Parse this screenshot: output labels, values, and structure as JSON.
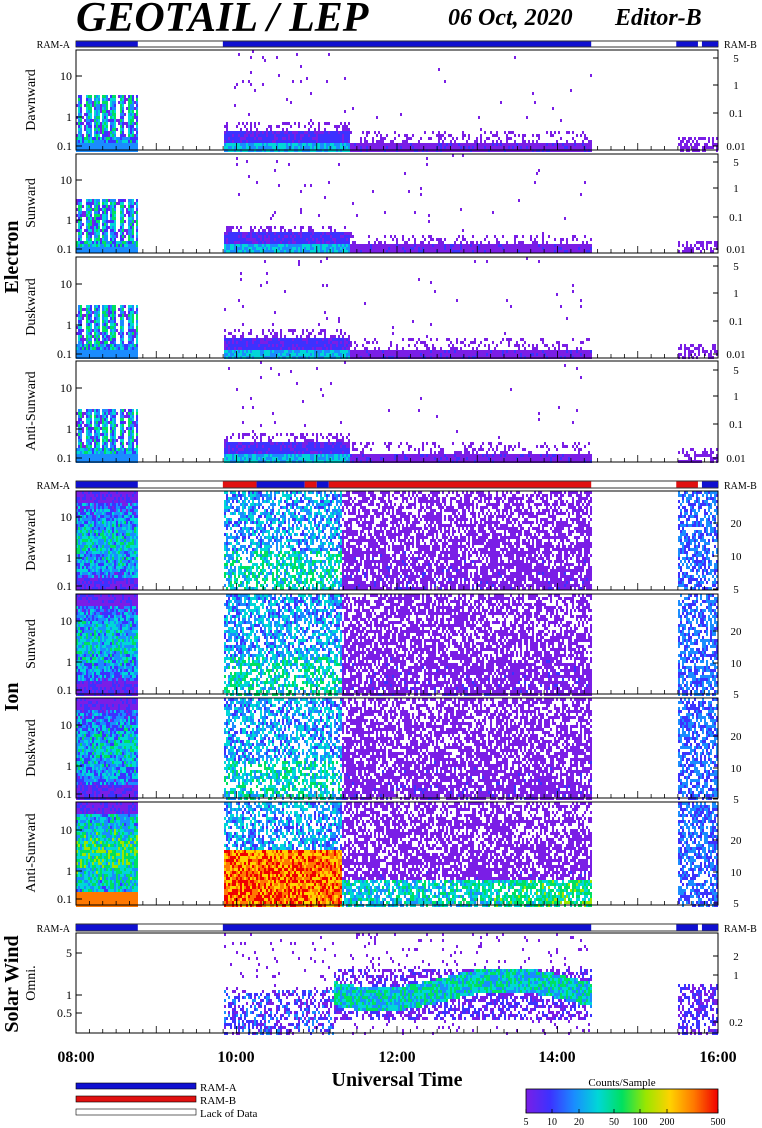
{
  "header": {
    "title": "GEOTAIL / LEP",
    "date": "06 Oct, 2020",
    "editor": "Editor-B"
  },
  "ram_labels": {
    "left": "RAM-A",
    "right": "RAM-B"
  },
  "group_labels": {
    "electron": "Electron",
    "ion": "Ion",
    "solar_wind": "Solar Wind"
  },
  "x_axis": {
    "label": "Universal Time",
    "ticks": [
      "08:00",
      "10:00",
      "12:00",
      "14:00",
      "16:00"
    ]
  },
  "legend": {
    "ram_a": "RAM-A",
    "ram_b": "RAM-B",
    "lack": "Lack of Data"
  },
  "colorbar": {
    "title": "Counts/Sample",
    "ticks": [
      "5",
      "10",
      "20",
      "50",
      "100",
      "200",
      "500"
    ]
  },
  "colors": {
    "ram_a": "#1010d0",
    "ram_b": "#e01010",
    "colormap": [
      "#7a1ee6",
      "#3c32ff",
      "#1a8cff",
      "#00d7d7",
      "#00e060",
      "#9be600",
      "#ffd200",
      "#ff7800",
      "#f00000"
    ]
  },
  "chart_data": {
    "type": "heatmap",
    "x_range_hours": [
      8,
      16
    ],
    "data_segments_hours": [
      [
        8.0,
        8.77
      ],
      [
        9.83,
        14.42
      ],
      [
        15.48,
        16.0
      ]
    ],
    "panels": [
      {
        "group": "electron",
        "label": "Dawnward",
        "left_ticks": [
          "10",
          "1",
          "0.1"
        ],
        "right_ticks": [
          "5",
          "1",
          "0.1",
          "0.01"
        ],
        "ram": [
          [
            "A",
            8.0,
            8.77
          ],
          [
            "A",
            9.83,
            14.42
          ],
          [
            "A",
            15.48,
            15.75
          ],
          [
            "A",
            15.8,
            16.0
          ]
        ]
      },
      {
        "group": "electron",
        "label": "Sunward",
        "left_ticks": [
          "10",
          "1",
          "0.1"
        ],
        "right_ticks": [
          "5",
          "1",
          "0.1",
          "0.01"
        ]
      },
      {
        "group": "electron",
        "label": "Duskward",
        "left_ticks": [
          "10",
          "1",
          "0.1"
        ],
        "right_ticks": [
          "5",
          "1",
          "0.1",
          "0.01"
        ]
      },
      {
        "group": "electron",
        "label": "Anti-Sunward",
        "left_ticks": [
          "10",
          "1",
          "0.1"
        ],
        "right_ticks": [
          "5",
          "1",
          "0.1",
          "0.01"
        ]
      },
      {
        "group": "ion",
        "label": "Dawnward",
        "left_ticks": [
          "10",
          "1",
          "0.1"
        ],
        "right_ticks": [
          "20",
          "10",
          "5"
        ],
        "ram": [
          [
            "A",
            8.0,
            8.77
          ],
          [
            "B",
            9.83,
            10.25
          ],
          [
            "A",
            10.25,
            10.85
          ],
          [
            "B",
            10.85,
            11.0
          ],
          [
            "A",
            11.0,
            11.15
          ],
          [
            "B",
            11.15,
            14.42
          ],
          [
            "B",
            15.48,
            15.75
          ],
          [
            "A",
            15.8,
            16.0
          ]
        ]
      },
      {
        "group": "ion",
        "label": "Sunward",
        "left_ticks": [
          "10",
          "1",
          "0.1"
        ],
        "right_ticks": [
          "20",
          "10",
          "5"
        ]
      },
      {
        "group": "ion",
        "label": "Duskward",
        "left_ticks": [
          "10",
          "1",
          "0.1"
        ],
        "right_ticks": [
          "20",
          "10",
          "5"
        ]
      },
      {
        "group": "ion",
        "label": "Anti-Sunward",
        "left_ticks": [
          "10",
          "1",
          "0.1"
        ],
        "right_ticks": [
          "20",
          "10",
          "5"
        ]
      },
      {
        "group": "solar_wind",
        "label": "Omni.",
        "left_ticks": [
          "5",
          "1",
          "0.5"
        ],
        "right_ticks": [
          "2",
          "1",
          "0.2"
        ],
        "ram": [
          [
            "A",
            8.0,
            8.77
          ],
          [
            "A",
            9.83,
            14.42
          ],
          [
            "A",
            15.48,
            15.75
          ],
          [
            "A",
            15.8,
            16.0
          ]
        ]
      }
    ]
  }
}
